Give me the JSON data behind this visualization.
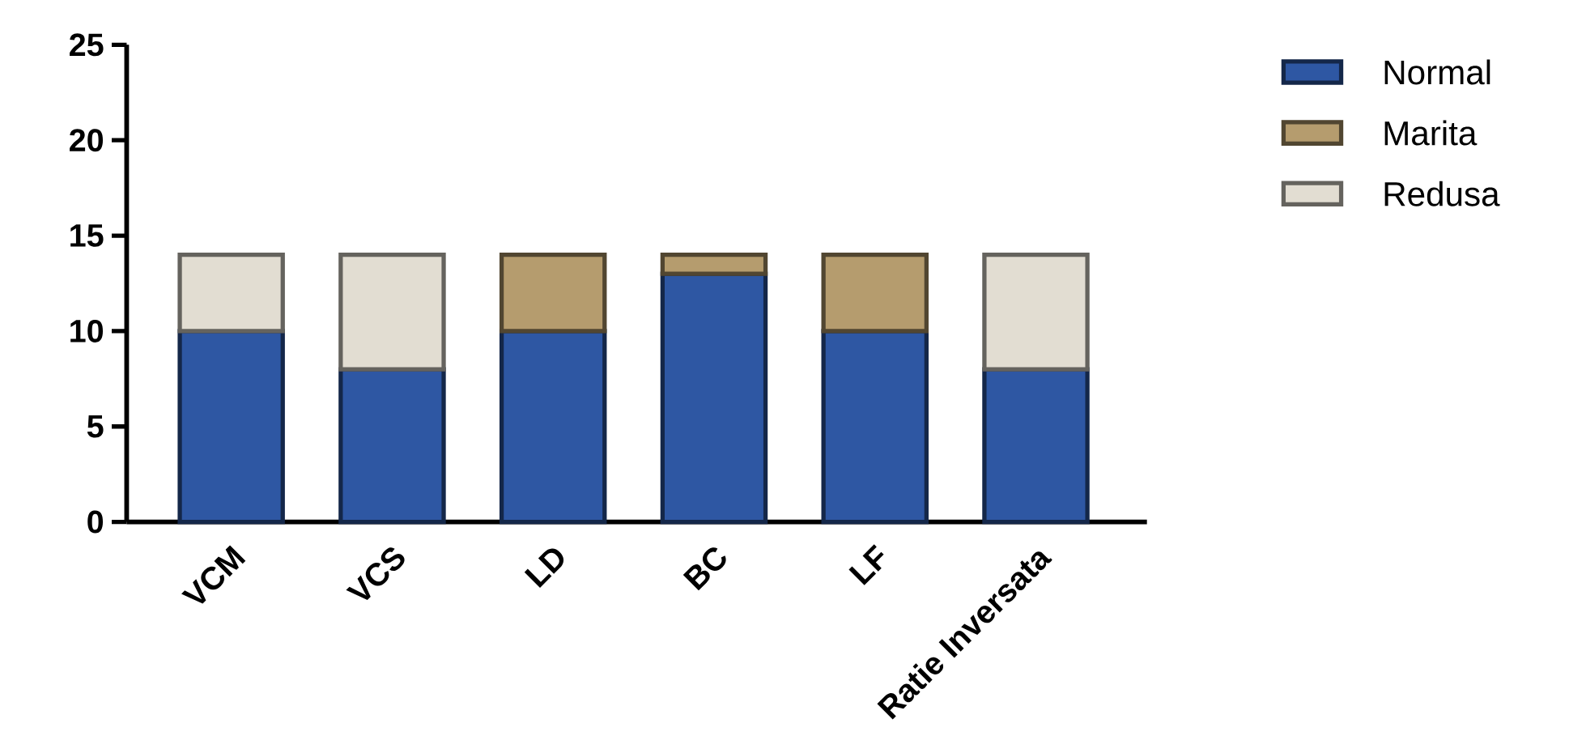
{
  "chart_data": {
    "type": "bar",
    "stacked": true,
    "categories": [
      "VCM",
      "VCS",
      "LD",
      "BC",
      "LF",
      "Ratie Inversata"
    ],
    "series": [
      {
        "name": "Normal",
        "color": "#2e57a3",
        "values": [
          10,
          8,
          10,
          13,
          10,
          8
        ]
      },
      {
        "name": "Marita",
        "color": "#b59c6e",
        "values": [
          0,
          0,
          4,
          1,
          4,
          0
        ]
      },
      {
        "name": "Redusa",
        "color": "#e2ddd2",
        "values": [
          4,
          6,
          0,
          0,
          0,
          6
        ]
      }
    ],
    "ylim": [
      0,
      25
    ],
    "yticks": [
      0,
      5,
      10,
      15,
      20,
      25
    ],
    "legend": "top right",
    "grid": false
  }
}
